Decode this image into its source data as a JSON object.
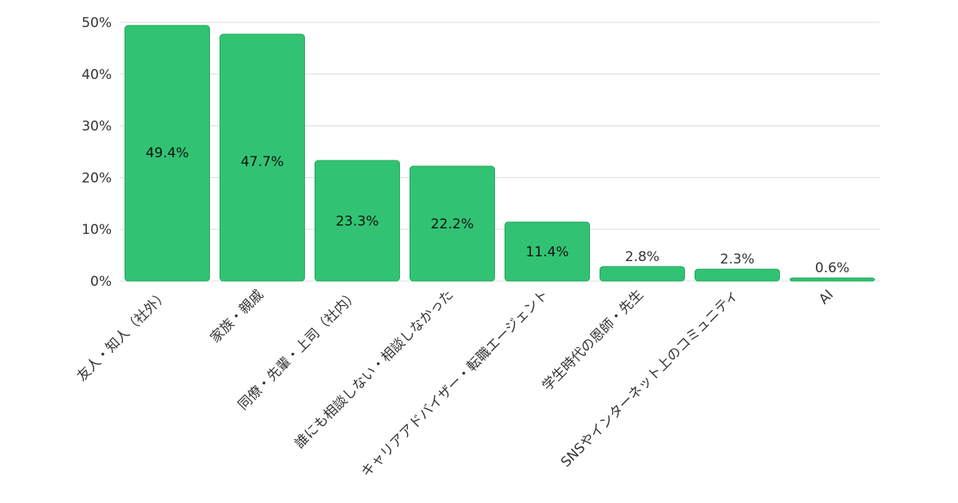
{
  "chart_data": {
    "type": "bar",
    "categories": [
      "友人・知人（社外）",
      "家族・親戚",
      "同僚・先輩・上司（社内）",
      "誰にも相談しない・相談しなかった",
      "キャリアアドバイザー・転職エージェント",
      "学生時代の恩師・先生",
      "SNSやインターネット上のコミュニティ",
      "AI"
    ],
    "values": [
      49.4,
      47.7,
      23.3,
      22.2,
      11.4,
      2.8,
      2.3,
      0.6
    ],
    "value_labels": [
      "49.4%",
      "47.7%",
      "23.3%",
      "22.2%",
      "11.4%",
      "2.8%",
      "2.3%",
      "0.6%"
    ],
    "y_ticks": [
      0,
      10,
      20,
      30,
      40,
      50
    ],
    "y_tick_labels": [
      "0%",
      "10%",
      "20%",
      "30%",
      "40%",
      "50%"
    ],
    "ylim": [
      0,
      50
    ],
    "grid": true,
    "colors": {
      "bar": "#31c373",
      "bar_edge": "#23a85d",
      "grid": "#dcdcdc",
      "text": "#333333"
    }
  }
}
